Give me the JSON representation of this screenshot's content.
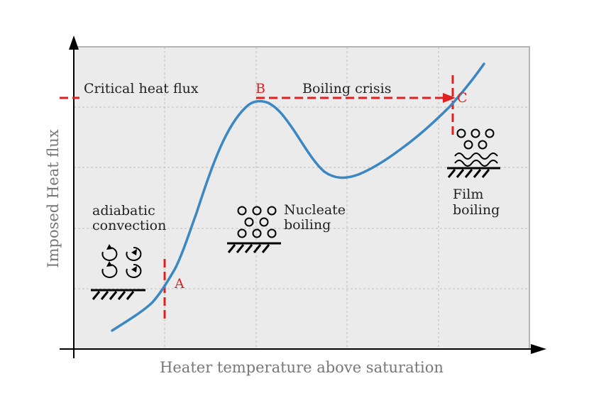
{
  "x_axis_title": "Heater temperature above saturation",
  "y_axis_title": "Imposed Heat flux",
  "labels": {
    "critical_heat_flux": "Critical heat flux",
    "boiling_crisis": "Boiling crisis",
    "adiabatic_1": "adiabatic",
    "adiabatic_2": "convection",
    "nucleate_1": "Nucleate",
    "nucleate_2": "boiling",
    "film_1": "Film",
    "film_2": "boiling"
  },
  "points": {
    "A": "A",
    "B": "B",
    "C": "C"
  },
  "colors": {
    "curve": "#3a87c4",
    "dashed_markers": "#e02020",
    "plot_background": "#ebebeb",
    "grid": "#bbbbbb",
    "axis_titles": "#777777"
  }
}
